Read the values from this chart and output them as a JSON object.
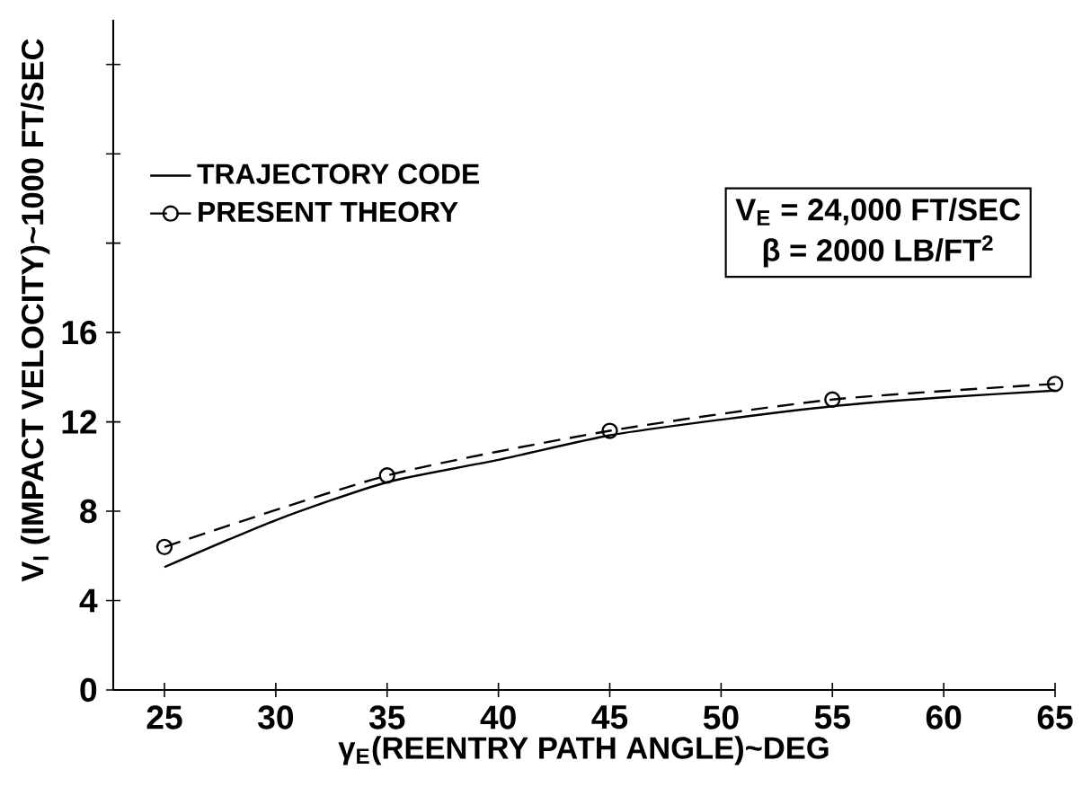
{
  "chart_data": {
    "type": "line",
    "xlabel": "γ$_{E}$(REENTRY PATH ANGLE)~DEG",
    "ylabel": "V$_{I}$ (IMPACT VELOCITY)~1000 FT/SEC",
    "annotations": [
      "V$_{E}$ = 24,000 FT/SEC",
      "β = 2000 LB/FT$^{2}$"
    ],
    "series": [
      {
        "name": "TRAJECTORY CODE",
        "color": "#000000",
        "line_style": "solid",
        "marker": "none",
        "x": [
          25,
          30,
          35,
          40,
          45,
          50,
          55,
          60,
          65
        ],
        "values": [
          5.5,
          7.6,
          9.3,
          10.3,
          11.4,
          12.1,
          12.7,
          13.1,
          13.4
        ]
      },
      {
        "name": "PRESENT THEORY",
        "color": "#000000",
        "line_style": "dashed",
        "marker": "circle",
        "x": [
          25,
          35,
          45,
          55,
          65
        ],
        "values": [
          6.4,
          9.6,
          11.6,
          13.0,
          13.7
        ]
      }
    ],
    "xlim": [
      22.7,
      65
    ],
    "ylim": [
      0,
      30
    ],
    "xticks": [
      25,
      30,
      35,
      40,
      45,
      50,
      55,
      60,
      65
    ],
    "yticks": [
      0,
      4,
      8,
      12,
      16,
      {
        "value": 20,
        "label": null
      },
      {
        "value": 24,
        "label": null
      },
      {
        "value": 28,
        "label": null
      }
    ],
    "grid": false,
    "legend": "top left"
  }
}
